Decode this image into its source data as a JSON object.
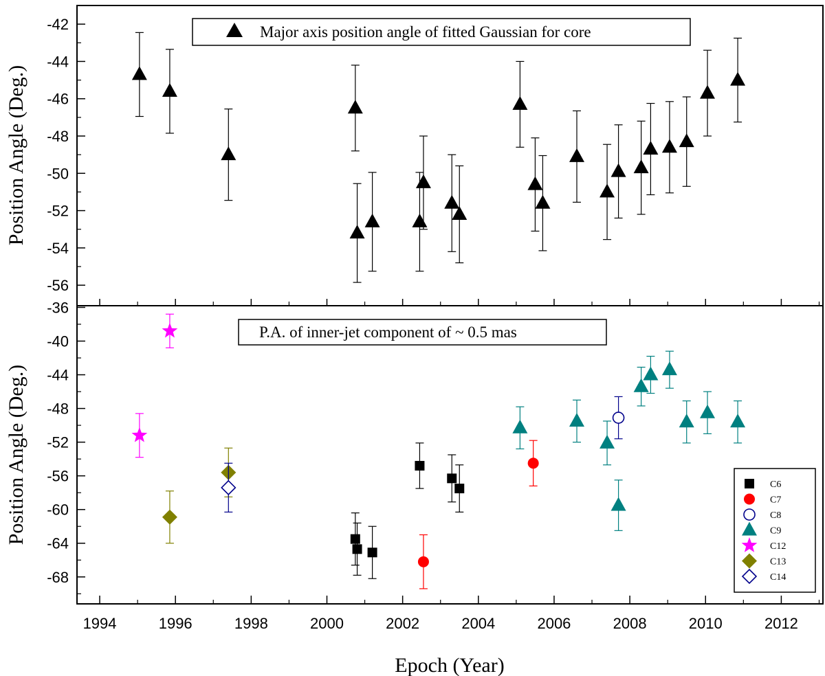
{
  "chart_data": [
    {
      "type": "scatter",
      "panel": "top",
      "ylabel": "Position Angle (Deg.)",
      "ylim": [
        -57.1,
        -41.0
      ],
      "yticks": [
        "-42",
        "-44",
        "-46",
        "-48",
        "-50",
        "-52",
        "-54",
        "-56"
      ],
      "annotation": "Major axis position angle of fitted Gaussian for core",
      "series": [
        {
          "name": "Core",
          "marker": "filled-triangle",
          "color": "#000000",
          "points": [
            {
              "x": 1995.05,
              "y": -44.7,
              "err": 2.25
            },
            {
              "x": 1995.85,
              "y": -45.6,
              "err": 2.25
            },
            {
              "x": 1997.4,
              "y": -49.0,
              "err": 2.45
            },
            {
              "x": 2000.75,
              "y": -46.5,
              "err": 2.3
            },
            {
              "x": 2000.8,
              "y": -53.2,
              "err": 2.65
            },
            {
              "x": 2001.2,
              "y": -52.6,
              "err": 2.65
            },
            {
              "x": 2002.45,
              "y": -52.6,
              "err": 2.65
            },
            {
              "x": 2002.55,
              "y": -50.5,
              "err": 2.5
            },
            {
              "x": 2003.3,
              "y": -51.6,
              "err": 2.6
            },
            {
              "x": 2003.5,
              "y": -52.2,
              "err": 2.6
            },
            {
              "x": 2005.1,
              "y": -46.3,
              "err": 2.3
            },
            {
              "x": 2005.5,
              "y": -50.6,
              "err": 2.5
            },
            {
              "x": 2005.7,
              "y": -51.6,
              "err": 2.55
            },
            {
              "x": 2006.6,
              "y": -49.1,
              "err": 2.45
            },
            {
              "x": 2007.4,
              "y": -51.0,
              "err": 2.55
            },
            {
              "x": 2007.7,
              "y": -49.9,
              "err": 2.5
            },
            {
              "x": 2008.3,
              "y": -49.7,
              "err": 2.5
            },
            {
              "x": 2008.55,
              "y": -48.7,
              "err": 2.45
            },
            {
              "x": 2009.05,
              "y": -48.6,
              "err": 2.45
            },
            {
              "x": 2009.5,
              "y": -48.3,
              "err": 2.4
            },
            {
              "x": 2010.05,
              "y": -45.7,
              "err": 2.3
            },
            {
              "x": 2010.85,
              "y": -45.0,
              "err": 2.25
            }
          ]
        }
      ]
    },
    {
      "type": "scatter",
      "panel": "bottom",
      "xlabel": "Epoch (Year)",
      "ylabel": "Position Angle (Deg.)",
      "xlim": [
        1993.4,
        2013.1
      ],
      "ylim": [
        -71.2,
        -35.8
      ],
      "xticks": [
        "1994",
        "1996",
        "1998",
        "2000",
        "2002",
        "2004",
        "2006",
        "2008",
        "2010",
        "2012"
      ],
      "yticks": [
        "-36",
        "-40",
        "-44",
        "-48",
        "-52",
        "-56",
        "-60",
        "-64",
        "-68"
      ],
      "annotation": "P.A. of inner-jet component of  ~ 0.5 mas",
      "series": [
        {
          "name": "C6",
          "marker": "filled-square",
          "color": "#000000",
          "points": [
            {
              "x": 2000.75,
              "y": -63.5,
              "err": 3.1
            },
            {
              "x": 2000.8,
              "y": -64.7,
              "err": 3.1
            },
            {
              "x": 2001.2,
              "y": -65.1,
              "err": 3.1
            },
            {
              "x": 2002.45,
              "y": -54.8,
              "err": 2.7
            },
            {
              "x": 2003.3,
              "y": -56.3,
              "err": 2.8
            },
            {
              "x": 2003.5,
              "y": -57.5,
              "err": 2.8
            }
          ]
        },
        {
          "name": "C7",
          "marker": "filled-circle",
          "color": "#ff0000",
          "points": [
            {
              "x": 2002.55,
              "y": -66.2,
              "err": 3.2
            },
            {
              "x": 2005.45,
              "y": -54.5,
              "err": 2.7
            }
          ]
        },
        {
          "name": "C8",
          "marker": "open-circle",
          "color": "#00008b",
          "points": [
            {
              "x": 2007.7,
              "y": -49.1,
              "err": 2.5
            }
          ]
        },
        {
          "name": "C9",
          "marker": "filled-triangle",
          "color": "#008080",
          "points": [
            {
              "x": 2005.1,
              "y": -50.3,
              "err": 2.5
            },
            {
              "x": 2006.6,
              "y": -49.5,
              "err": 2.5
            },
            {
              "x": 2007.4,
              "y": -52.1,
              "err": 2.6
            },
            {
              "x": 2007.7,
              "y": -59.5,
              "err": 3.0
            },
            {
              "x": 2008.3,
              "y": -45.4,
              "err": 2.3
            },
            {
              "x": 2008.55,
              "y": -44.0,
              "err": 2.2
            },
            {
              "x": 2009.05,
              "y": -43.4,
              "err": 2.2
            },
            {
              "x": 2009.5,
              "y": -49.6,
              "err": 2.5
            },
            {
              "x": 2010.05,
              "y": -48.5,
              "err": 2.5
            },
            {
              "x": 2010.85,
              "y": -49.6,
              "err": 2.5
            }
          ]
        },
        {
          "name": "C12",
          "marker": "star",
          "color": "#ff00ff",
          "points": [
            {
              "x": 1995.05,
              "y": -51.2,
              "err": 2.6
            },
            {
              "x": 1995.85,
              "y": -38.8,
              "err": 2.0
            }
          ]
        },
        {
          "name": "C13",
          "marker": "filled-diamond",
          "color": "#808000",
          "points": [
            {
              "x": 1995.85,
              "y": -60.9,
              "err": 3.1
            },
            {
              "x": 1997.4,
              "y": -55.6,
              "err": 2.9
            }
          ]
        },
        {
          "name": "C14",
          "marker": "open-diamond",
          "color": "#00008b",
          "points": [
            {
              "x": 1997.4,
              "y": -57.4,
              "err": 2.9
            }
          ]
        }
      ],
      "legend_position": "bottom-right"
    }
  ]
}
